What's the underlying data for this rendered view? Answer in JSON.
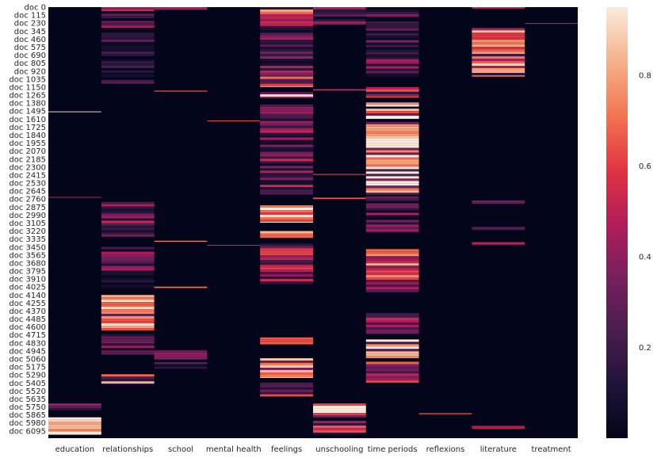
{
  "chart_data": {
    "type": "heatmap",
    "title": "",
    "xlabel": "",
    "ylabel": "",
    "colormap": "rocket",
    "colorbar_range": [
      0.0,
      0.95
    ],
    "colorbar_ticks": [
      "0.2",
      "0.4",
      "0.6",
      "0.8"
    ],
    "colorbar_tick_values": [
      0.2,
      0.4,
      0.6,
      0.8
    ],
    "columns": [
      "education",
      "relationships",
      "school",
      "mental health",
      "feelings",
      "unschooling",
      "time periods",
      "reflexions",
      "literature",
      "treatment"
    ],
    "row_count": 6200,
    "row_tick_labels": [
      "doc 0",
      "doc 115",
      "doc 230",
      "doc 345",
      "doc 460",
      "doc 575",
      "doc 690",
      "doc 805",
      "doc 920",
      "doc 1035",
      "doc 1150",
      "doc 1265",
      "doc 1380",
      "doc 1495",
      "doc 1610",
      "doc 1725",
      "doc 1840",
      "doc 1955",
      "doc 2070",
      "doc 2185",
      "doc 2300",
      "doc 2415",
      "doc 2530",
      "doc 2645",
      "doc 2760",
      "doc 2875",
      "doc 2990",
      "doc 3105",
      "doc 3220",
      "doc 3335",
      "doc 3450",
      "doc 3565",
      "doc 3680",
      "doc 3795",
      "doc 3910",
      "doc 4025",
      "doc 4140",
      "doc 4255",
      "doc 4370",
      "doc 4485",
      "doc 4600",
      "doc 4715",
      "doc 4830",
      "doc 4945",
      "doc 5060",
      "doc 5175",
      "doc 5290",
      "doc 5405",
      "doc 5520",
      "doc 5635",
      "doc 5750",
      "doc 5865",
      "doc 5980",
      "doc 6095"
    ],
    "row_tick_values": [
      0,
      115,
      230,
      345,
      460,
      575,
      690,
      805,
      920,
      1035,
      1150,
      1265,
      1380,
      1495,
      1610,
      1725,
      1840,
      1955,
      2070,
      2185,
      2300,
      2415,
      2530,
      2645,
      2760,
      2875,
      2990,
      3105,
      3220,
      3335,
      3450,
      3565,
      3680,
      3795,
      3910,
      4025,
      4140,
      4255,
      4370,
      4485,
      4600,
      4715,
      4830,
      4945,
      5060,
      5175,
      5290,
      5405,
      5520,
      5635,
      5750,
      5865,
      5980,
      6095
    ],
    "segments": [
      {
        "column": "relationships",
        "start": 0,
        "end": 60,
        "value": 0.55
      },
      {
        "column": "relationships",
        "start": 60,
        "end": 1100,
        "value": 0.2
      },
      {
        "column": "relationships",
        "start": 2800,
        "end": 3300,
        "value": 0.3
      },
      {
        "column": "relationships",
        "start": 3450,
        "end": 4050,
        "value": 0.25
      },
      {
        "column": "relationships",
        "start": 4140,
        "end": 4650,
        "value": 0.82
      },
      {
        "column": "relationships",
        "start": 4700,
        "end": 5000,
        "value": 0.3
      },
      {
        "column": "relationships",
        "start": 5280,
        "end": 5420,
        "value": 0.6
      },
      {
        "column": "school",
        "start": 0,
        "end": 40,
        "value": 0.35
      },
      {
        "column": "school",
        "start": 1200,
        "end": 1215,
        "value": 0.6
      },
      {
        "column": "school",
        "start": 3360,
        "end": 3375,
        "value": 0.7
      },
      {
        "column": "school",
        "start": 4020,
        "end": 4040,
        "value": 0.65
      },
      {
        "column": "school",
        "start": 4900,
        "end": 5200,
        "value": 0.2
      },
      {
        "column": "feelings",
        "start": 0,
        "end": 300,
        "value": 0.6
      },
      {
        "column": "feelings",
        "start": 300,
        "end": 1000,
        "value": 0.3
      },
      {
        "column": "feelings",
        "start": 1000,
        "end": 1150,
        "value": 0.85
      },
      {
        "column": "feelings",
        "start": 1220,
        "end": 1310,
        "value": 0.9
      },
      {
        "column": "feelings",
        "start": 1400,
        "end": 2700,
        "value": 0.3
      },
      {
        "column": "feelings",
        "start": 2850,
        "end": 3100,
        "value": 0.75
      },
      {
        "column": "feelings",
        "start": 3220,
        "end": 3320,
        "value": 0.85
      },
      {
        "column": "feelings",
        "start": 3400,
        "end": 4000,
        "value": 0.4
      },
      {
        "column": "feelings",
        "start": 4750,
        "end": 4850,
        "value": 0.6
      },
      {
        "column": "feelings",
        "start": 5050,
        "end": 5330,
        "value": 0.78
      },
      {
        "column": "feelings",
        "start": 5400,
        "end": 5600,
        "value": 0.55
      },
      {
        "column": "unschooling",
        "start": 0,
        "end": 250,
        "value": 0.3
      },
      {
        "column": "unschooling",
        "start": 1180,
        "end": 1200,
        "value": 0.5
      },
      {
        "column": "unschooling",
        "start": 2400,
        "end": 2410,
        "value": 0.6
      },
      {
        "column": "unschooling",
        "start": 2740,
        "end": 2760,
        "value": 0.7
      },
      {
        "column": "unschooling",
        "start": 5700,
        "end": 5900,
        "value": 0.82
      },
      {
        "column": "unschooling",
        "start": 5950,
        "end": 6150,
        "value": 0.6
      },
      {
        "column": "time periods",
        "start": 0,
        "end": 1000,
        "value": 0.25
      },
      {
        "column": "time periods",
        "start": 1150,
        "end": 1300,
        "value": 0.6
      },
      {
        "column": "time periods",
        "start": 1370,
        "end": 1430,
        "value": 0.8
      },
      {
        "column": "time periods",
        "start": 1460,
        "end": 1600,
        "value": 0.88
      },
      {
        "column": "time periods",
        "start": 1650,
        "end": 2700,
        "value": 0.9
      },
      {
        "column": "time periods",
        "start": 2720,
        "end": 3250,
        "value": 0.25
      },
      {
        "column": "time periods",
        "start": 3480,
        "end": 4100,
        "value": 0.6
      },
      {
        "column": "time periods",
        "start": 4400,
        "end": 4700,
        "value": 0.5
      },
      {
        "column": "time periods",
        "start": 4780,
        "end": 5050,
        "value": 0.85
      },
      {
        "column": "time periods",
        "start": 5100,
        "end": 5400,
        "value": 0.5
      },
      {
        "column": "reflexions",
        "start": 5840,
        "end": 5855,
        "value": 0.6
      },
      {
        "column": "literature",
        "start": 0,
        "end": 20,
        "value": 0.6
      },
      {
        "column": "literature",
        "start": 300,
        "end": 1000,
        "value": 0.68
      },
      {
        "column": "literature",
        "start": 2780,
        "end": 2830,
        "value": 0.5
      },
      {
        "column": "literature",
        "start": 3160,
        "end": 3200,
        "value": 0.4
      },
      {
        "column": "literature",
        "start": 3380,
        "end": 3420,
        "value": 0.6
      },
      {
        "column": "literature",
        "start": 6020,
        "end": 6060,
        "value": 0.5
      },
      {
        "column": "education",
        "start": 1500,
        "end": 1510,
        "value": 0.9
      },
      {
        "column": "education",
        "start": 2730,
        "end": 2740,
        "value": 0.5
      },
      {
        "column": "education",
        "start": 5700,
        "end": 5800,
        "value": 0.4
      },
      {
        "column": "education",
        "start": 5900,
        "end": 6150,
        "value": 0.9
      },
      {
        "column": "mental health",
        "start": 1630,
        "end": 1640,
        "value": 0.6
      },
      {
        "column": "mental health",
        "start": 3420,
        "end": 3430,
        "value": 0.5
      },
      {
        "column": "treatment",
        "start": 230,
        "end": 240,
        "value": 0.5
      }
    ]
  }
}
